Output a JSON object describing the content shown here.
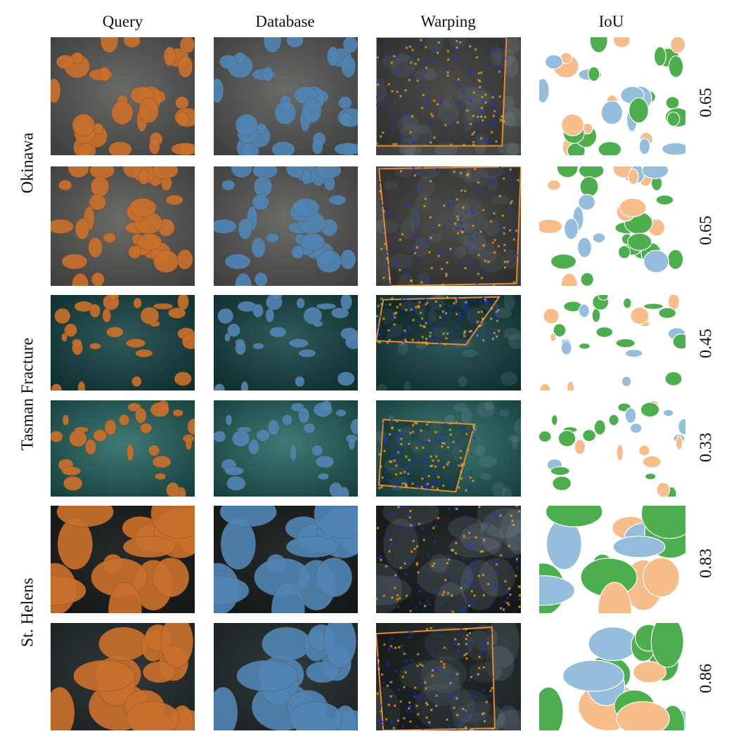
{
  "columns": [
    "Query",
    "Database",
    "Warping",
    "IoU"
  ],
  "groups": [
    "Okinawa",
    "Tasman Fracture",
    "St. Helens"
  ],
  "rows": [
    {
      "group": "Okinawa",
      "iou": "0.65"
    },
    {
      "group": "Okinawa",
      "iou": "0.65"
    },
    {
      "group": "Tasman Fracture",
      "iou": "0.45"
    },
    {
      "group": "Tasman Fracture",
      "iou": "0.33"
    },
    {
      "group": "St. Helens",
      "iou": "0.83"
    },
    {
      "group": "St. Helens",
      "iou": "0.86"
    }
  ],
  "colors": {
    "query_mask": "#c8702c",
    "database_mask": "#4f84b3",
    "iou_overlap": "#4cae4c",
    "iou_query_only": "#f7bd8b",
    "iou_database_only": "#94bedc",
    "warp_outline": "#e8892d",
    "kp_a": "#f5a623",
    "kp_b": "#1c2fd8"
  }
}
